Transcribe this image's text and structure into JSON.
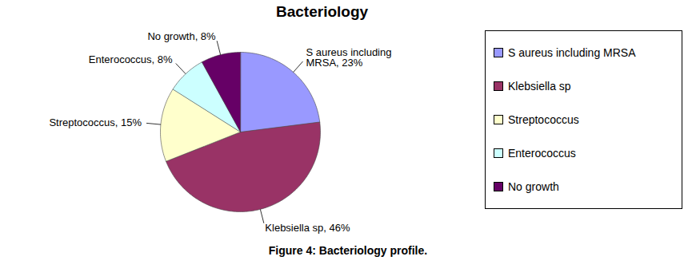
{
  "chart_data": {
    "type": "pie",
    "title": "Bacteriology",
    "caption": "Figure 4: Bacteriology profile.",
    "categories": [
      "S aureus including MRSA",
      "Klebsiella sp",
      "Streptococcus",
      "Enterococcus",
      "No growth"
    ],
    "values": [
      23,
      46,
      15,
      8,
      8
    ],
    "value_labels": [
      "S aureus including MRSA, 23%",
      "Klebsiella sp, 46%",
      "Streptococcus, 15%",
      "Enterococcus, 8%",
      "No growth, 8%"
    ],
    "colors": [
      "#9999ff",
      "#993366",
      "#ffffcc",
      "#ccffff",
      "#660066"
    ],
    "data_labels": true,
    "legend": "right",
    "tick_labels": false
  }
}
